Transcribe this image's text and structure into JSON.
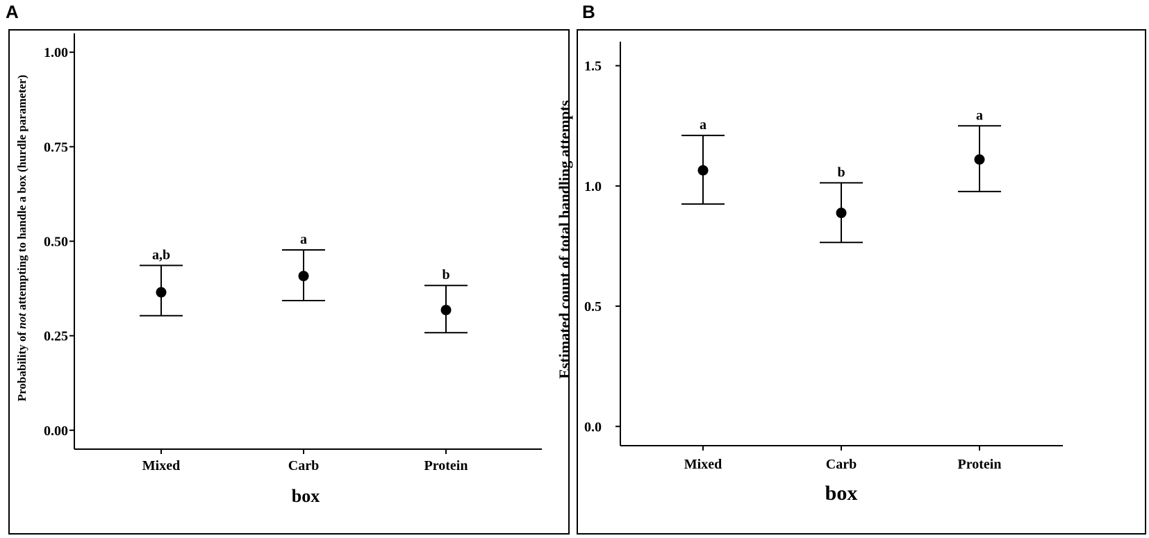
{
  "panels": [
    {
      "letter": "A",
      "chart_data": {
        "type": "scatter",
        "subtype": "point-with-error-bars",
        "title": "",
        "xlabel": "box",
        "ylabel_pre": "Probability of ",
        "ylabel_em": "not",
        "ylabel_post": " attempting to handle a box (hurdle parameter)",
        "ylim": [
          -0.05,
          1.05
        ],
        "yticks": [
          0.0,
          0.25,
          0.5,
          0.75,
          1.0
        ],
        "ytick_labels": [
          "0.00",
          "0.25",
          "0.50",
          "0.75",
          "1.00"
        ],
        "categories": [
          "Mixed",
          "Carb",
          "Protein"
        ],
        "estimate": [
          0.365,
          0.408,
          0.318
        ],
        "lower": [
          0.303,
          0.343,
          0.258
        ],
        "upper": [
          0.436,
          0.477,
          0.383
        ],
        "letters": [
          "a,b",
          "a",
          "b"
        ]
      }
    },
    {
      "letter": "B",
      "chart_data": {
        "type": "scatter",
        "subtype": "point-with-error-bars",
        "title": "",
        "xlabel": "box",
        "ylabel": "Estimated count of total handling attempts",
        "ylim": [
          -0.08,
          1.6
        ],
        "yticks": [
          0.0,
          0.5,
          1.0,
          1.5
        ],
        "ytick_labels": [
          "0.0",
          "0.5",
          "1.0",
          "1.5"
        ],
        "categories": [
          "Mixed",
          "Carb",
          "Protein"
        ],
        "estimate": [
          1.065,
          0.888,
          1.11
        ],
        "lower": [
          0.925,
          0.765,
          0.977
        ],
        "upper": [
          1.21,
          1.013,
          1.25
        ],
        "letters": [
          "a",
          "b",
          "a"
        ]
      }
    }
  ]
}
